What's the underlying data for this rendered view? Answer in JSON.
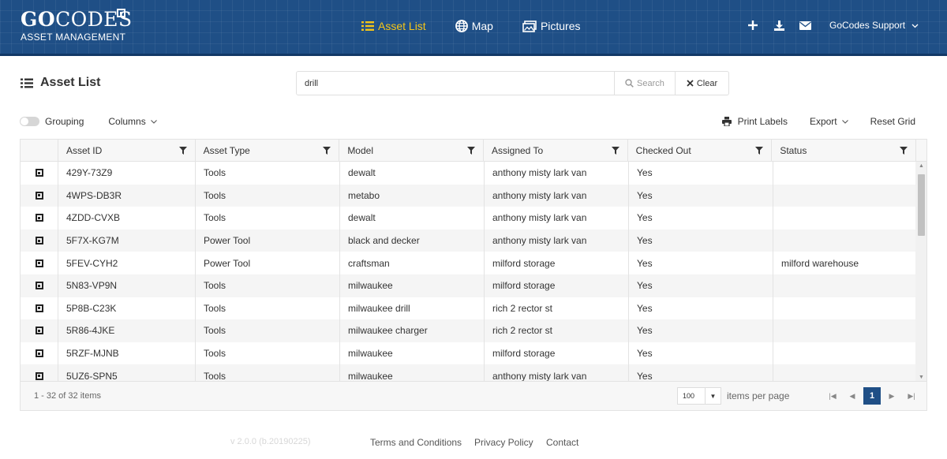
{
  "brand": {
    "logo_main_bold": "GO",
    "logo_main_light": "CODES",
    "logo_sub": "ASSET MANAGEMENT"
  },
  "nav": [
    {
      "label": "Asset List",
      "icon": "list-icon",
      "active": true
    },
    {
      "label": "Map",
      "icon": "globe-icon",
      "active": false
    },
    {
      "label": "Pictures",
      "icon": "pictures-icon",
      "active": false
    }
  ],
  "header_actions": {
    "icons": [
      "plus-icon",
      "download-icon",
      "envelope-icon"
    ],
    "user_label": "GoCodes Support"
  },
  "page_title": "Asset List",
  "search": {
    "value": "drill",
    "search_label": "Search",
    "clear_label": "Clear"
  },
  "toolbar": {
    "grouping_label": "Grouping",
    "grouping_on": false,
    "columns_label": "Columns",
    "print_labels": "Print Labels",
    "export_label": "Export",
    "reset_label": "Reset Grid"
  },
  "grid": {
    "columns": [
      "Asset ID",
      "Asset Type",
      "Model",
      "Assigned To",
      "Checked Out",
      "Status"
    ],
    "rows": [
      [
        "429Y-73Z9",
        "Tools",
        "dewalt",
        "anthony misty lark van",
        "Yes",
        ""
      ],
      [
        "4WPS-DB3R",
        "Tools",
        "metabo",
        "anthony misty lark van",
        "Yes",
        ""
      ],
      [
        "4ZDD-CVXB",
        "Tools",
        "dewalt",
        "anthony misty lark van",
        "Yes",
        ""
      ],
      [
        "5F7X-KG7M",
        "Power Tool",
        "black and decker",
        "anthony misty lark van",
        "Yes",
        ""
      ],
      [
        "5FEV-CYH2",
        "Power Tool",
        "craftsman",
        "milford storage",
        "Yes",
        "milford warehouse"
      ],
      [
        "5N83-VP9N",
        "Tools",
        "milwaukee",
        "milford storage",
        "Yes",
        ""
      ],
      [
        "5P8B-C23K",
        "Tools",
        "milwaukee drill",
        "rich 2 rector st",
        "Yes",
        ""
      ],
      [
        "5R86-4JKE",
        "Tools",
        "milwaukee charger",
        "rich 2 rector st",
        "Yes",
        ""
      ],
      [
        "5RZF-MJNB",
        "Tools",
        "milwaukee",
        "milford storage",
        "Yes",
        ""
      ],
      [
        "5UZ6-SPN5",
        "Tools",
        "milwaukee",
        "anthony misty lark van",
        "Yes",
        ""
      ]
    ],
    "items_summary": "1 - 32 of 32 items",
    "page_size": "100",
    "items_per_page_label": "items per page",
    "current_page": "1"
  },
  "footer": {
    "version": "v 2.0.0 (b.20190225)",
    "links": [
      "Terms and Conditions",
      "Privacy Policy",
      "Contact"
    ]
  },
  "colors": {
    "header_bg": "#1f4f86",
    "active_nav": "#f5c518",
    "page_btn": "#1f4f86"
  }
}
